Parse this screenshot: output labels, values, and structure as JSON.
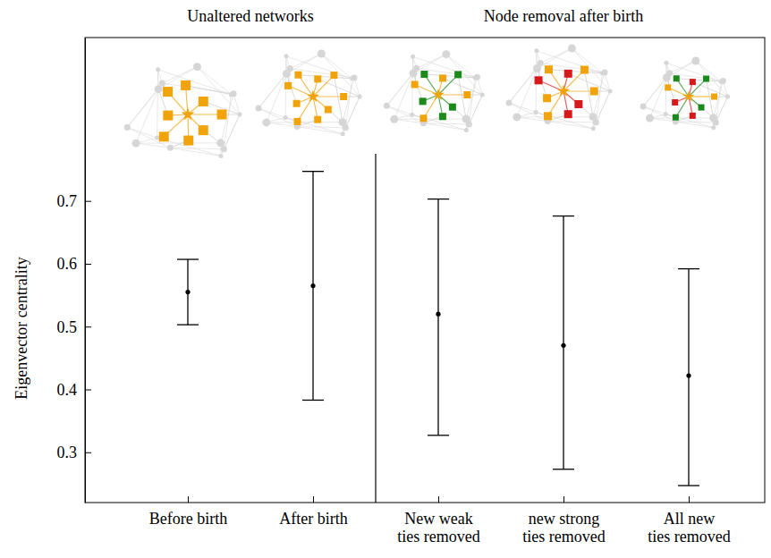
{
  "chart_data": {
    "type": "errorbar",
    "y_label": "Eigenvector centrality",
    "categories": [
      "Before birth",
      "After birth",
      "New weak ties removed",
      "new strong ties removed",
      "All new ties removed"
    ],
    "values": [
      0.555,
      0.565,
      0.52,
      0.47,
      0.422
    ],
    "lower": [
      0.503,
      0.383,
      0.327,
      0.273,
      0.247
    ],
    "upper": [
      0.607,
      0.747,
      0.703,
      0.676,
      0.592
    ],
    "color": "#000000",
    "marker": "circle",
    "ylim": [
      0.22,
      0.96
    ],
    "yticks": [
      0.3,
      0.4,
      0.5,
      0.6,
      0.7
    ],
    "groups": [
      {
        "label": "Unaltered networks",
        "categories": [
          "Before birth",
          "After birth"
        ]
      },
      {
        "label": "Node removal after birth",
        "categories": [
          "New weak ties removed",
          "new strong ties removed",
          "All new ties removed"
        ]
      }
    ]
  }
}
